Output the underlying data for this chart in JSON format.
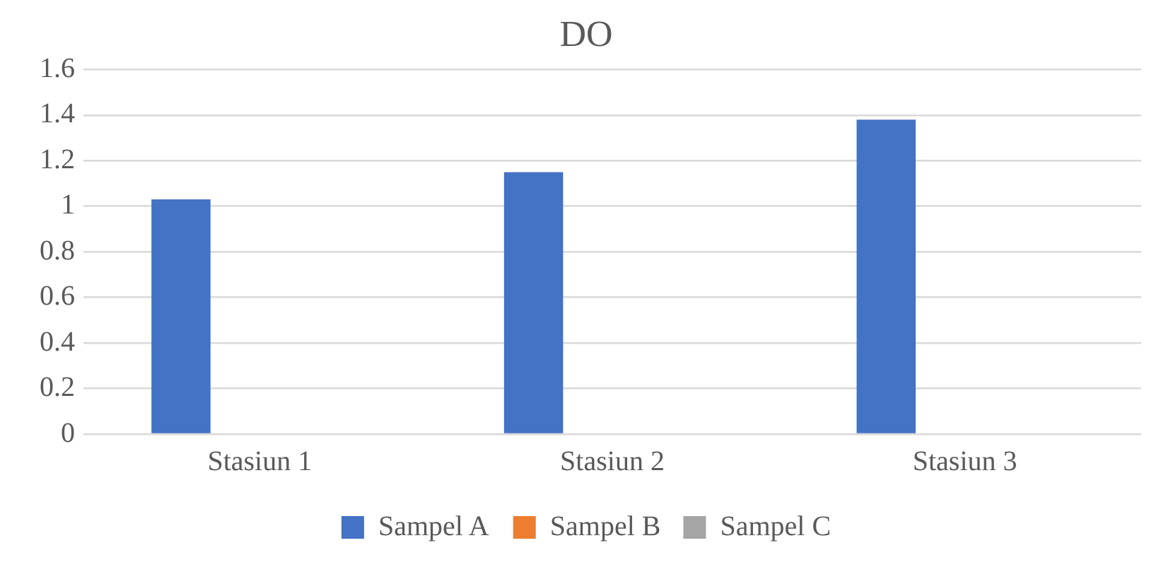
{
  "chart_data": {
    "type": "bar",
    "title": "DO",
    "categories": [
      "Stasiun 1",
      "Stasiun 2",
      "Stasiun 3"
    ],
    "series": [
      {
        "name": "Sampel A",
        "color": "#4472c4",
        "values": [
          1.03,
          1.15,
          1.38
        ]
      },
      {
        "name": "Sampel B",
        "color": "#ed7d31",
        "values": [
          0,
          0,
          0
        ]
      },
      {
        "name": "Sampel C",
        "color": "#a5a5a5",
        "values": [
          0,
          0,
          0
        ]
      }
    ],
    "ylim": [
      0,
      1.6
    ],
    "yticks": [
      0,
      0.2,
      0.4,
      0.6,
      0.8,
      1,
      1.2,
      1.4,
      1.6
    ],
    "grid": "y",
    "legend": "bottom"
  }
}
